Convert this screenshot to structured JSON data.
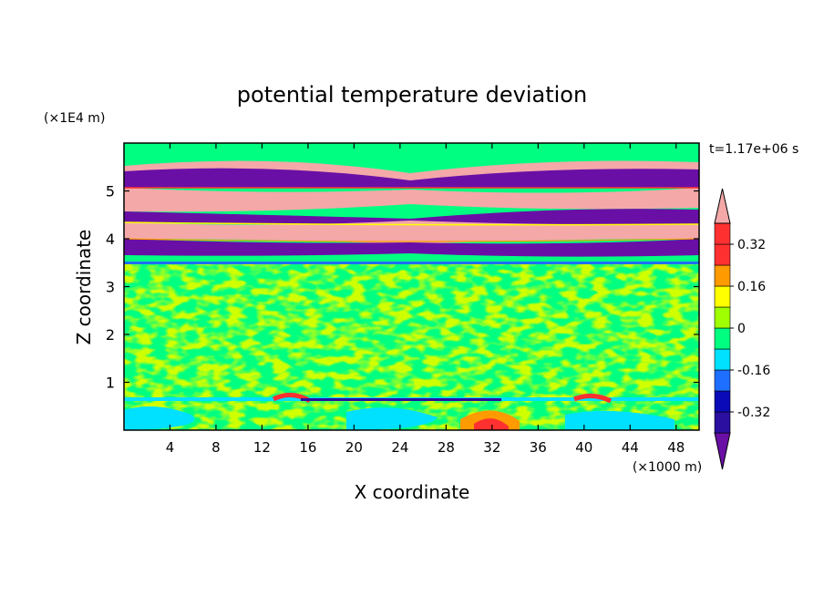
{
  "chart_data": {
    "type": "heatmap",
    "title": "potential temperature deviation",
    "xlabel": "X coordinate",
    "ylabel": "Z coordinate",
    "x_unit": "(×1000 m)",
    "y_unit": "(×1E4 m)",
    "time_label": "t=1.17e+06 s",
    "xlim": [
      0,
      50
    ],
    "ylim": [
      0,
      6
    ],
    "x_ticks": [
      4,
      8,
      12,
      16,
      20,
      24,
      28,
      32,
      36,
      40,
      44,
      48
    ],
    "y_ticks": [
      1,
      2,
      3,
      4,
      5
    ],
    "colorbar": {
      "levels": [
        -0.4,
        -0.32,
        -0.24,
        -0.16,
        -0.08,
        0,
        0.08,
        0.16,
        0.24,
        0.32,
        0.4
      ],
      "tick_labels": [
        "0.32",
        "0.16",
        "0",
        "-0.16",
        "-0.32"
      ],
      "tick_values": [
        0.32,
        0.16,
        0,
        -0.16,
        -0.32
      ],
      "colors": [
        "#6a0fa6",
        "#2a0fa0",
        "#0a0ab8",
        "#1e6eff",
        "#00e0ff",
        "#00ff80",
        "#a0ff00",
        "#ffff00",
        "#ff9a00",
        "#ff3030",
        "#f4a8a8"
      ],
      "extend": "both"
    },
    "bands": [
      {
        "z_range": [
          5.3,
          5.5
        ],
        "value": "< -0.40"
      },
      {
        "z_range": [
          4.7,
          4.95
        ],
        "value": "> 0.40"
      },
      {
        "z_range": [
          4.4,
          4.6
        ],
        "value": "< -0.40"
      },
      {
        "z_range": [
          4.05,
          4.3
        ],
        "value": "> 0.40"
      },
      {
        "z_range": [
          3.75,
          4.0
        ],
        "value": "< -0.40"
      },
      {
        "z_range": [
          0.0,
          3.5
        ],
        "value": "-0.08 to 0.08"
      }
    ],
    "grid": false
  }
}
